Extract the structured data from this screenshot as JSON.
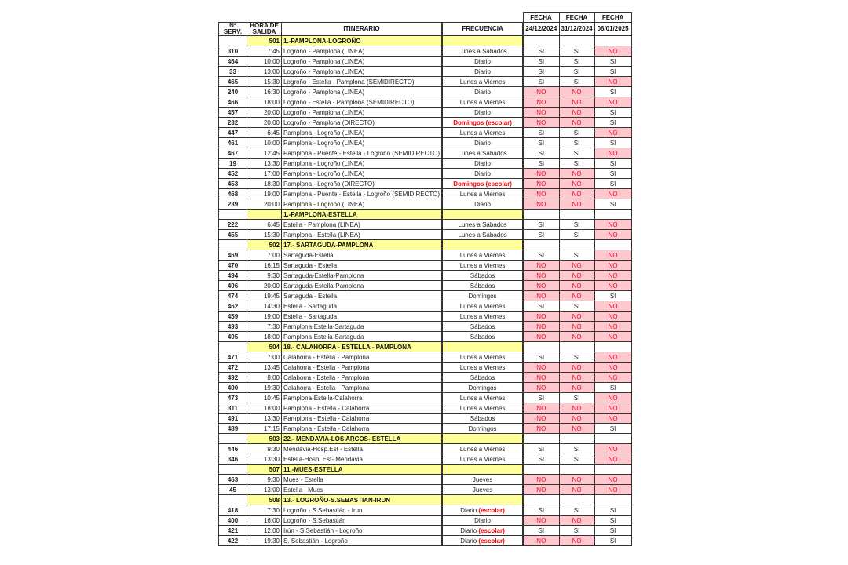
{
  "header": {
    "fecha_label": "FECHA",
    "col_num": "Nº SERV.",
    "col_hora": "HORA DE SALIDA",
    "col_itinerario": "ITINERARIO",
    "col_frecuencia": "FRECUENCIA",
    "dates": [
      "24/12/2024",
      "31/12/2024",
      "06/01/2025"
    ]
  },
  "colors": {
    "no_bg": "#ffc7ce",
    "no_text": "#e0102a",
    "group_bg": "#ffff99",
    "escolar": "#ff0000"
  },
  "groups": [
    {
      "code": "501",
      "name": "1.-PAMPLONA-LOGROÑO",
      "rows": [
        [
          "310",
          "7:45",
          "Logroño - Pamplona (LINEA)",
          "Lunes a Sábados",
          "",
          "SI",
          "SI",
          "NO"
        ],
        [
          "464",
          "10:00",
          "Logroño - Pamplona (LINEA)",
          "Diario",
          "",
          "SI",
          "SI",
          "SI"
        ],
        [
          "33",
          "13:00",
          "Logroño - Pamplona (LINEA)",
          "Diario",
          "",
          "SI",
          "SI",
          "SI"
        ],
        [
          "465",
          "15:30",
          "Logroño - Estella - Pamplona (SEMIDIRECTO)",
          "Lunes a Viernes",
          "",
          "SI",
          "SI",
          "NO"
        ],
        [
          "240",
          "16:30",
          "Logroño - Pamplona (LINEA)",
          "Diario",
          "",
          "NO",
          "NO",
          "SI"
        ],
        [
          "466",
          "18:00",
          "Logroño - Estella - Pamplona (SEMIDIRECTO)",
          "Lunes a Viernes",
          "",
          "NO",
          "NO",
          "NO"
        ],
        [
          "457",
          "20:00",
          "Logroño - Pamplona (LINEA)",
          "Diario",
          "",
          "NO",
          "NO",
          "SI"
        ],
        [
          "232",
          "20:00",
          "Logroño - Pamplona (DIRECTO)",
          "",
          "Domingos (escolar)",
          "NO",
          "NO",
          "SI"
        ],
        [
          "447",
          "6:45",
          "Pamplona - Logroño (LINEA)",
          "Lunes a Viernes",
          "",
          "SI",
          "SI",
          "NO"
        ],
        [
          "461",
          "10:00",
          "Pamplona - Logroño (LINEA)",
          "Diario",
          "",
          "SI",
          "SI",
          "SI"
        ],
        [
          "467",
          "12:45",
          "Pamplona - Puente - Estella - Logroño (SEMIDIRECTO)",
          "Lunes a Sábados",
          "",
          "SI",
          "SI",
          "NO"
        ],
        [
          "19",
          "13:30",
          "Pamplona - Logroño (LINEA)",
          "Diario",
          "",
          "SI",
          "SI",
          "SI"
        ],
        [
          "452",
          "17:00",
          "Pamplona - Logroño (LINEA)",
          "Diario",
          "",
          "NO",
          "NO",
          "SI"
        ],
        [
          "453",
          "18:30",
          "Pamplona - Logroño (DIRECTO)",
          "",
          "Domingos (escolar)",
          "NO",
          "NO",
          "SI"
        ],
        [
          "468",
          "19:00",
          "Pamplona - Puente - Estella - Logroño (SEMIDIRECTO)",
          "Lunes a Viernes",
          "",
          "NO",
          "NO",
          "NO"
        ],
        [
          "239",
          "20:00",
          "Pamplona - Logroño (LINEA)",
          "Diario",
          "",
          "NO",
          "NO",
          "SI"
        ]
      ]
    },
    {
      "code": "",
      "name": "1.-PAMPLONA-ESTELLA",
      "rows": [
        [
          "222",
          "6:45",
          "Estella - Pamplona (LINEA)",
          "Lunes a Sábados",
          "",
          "SI",
          "SI",
          "NO"
        ],
        [
          "455",
          "15:30",
          "Pamplona - Estella (LINEA)",
          "Lunes a Sábados",
          "",
          "SI",
          "SI",
          "NO"
        ]
      ]
    },
    {
      "code": "502",
      "name": "17.- SARTAGUDA-PAMPLONA",
      "rows": [
        [
          "469",
          "7:00",
          "Sartaguda-Estella",
          "Lunes a Viernes",
          "",
          "SI",
          "SI",
          "NO"
        ],
        [
          "470",
          "16:15",
          "Sartaguda - Estella",
          "Lunes a Viernes",
          "",
          "NO",
          "NO",
          "NO"
        ],
        [
          "494",
          "9:30",
          "Sartaguda-Estella-Pamplona",
          "Sábados",
          "",
          "NO",
          "NO",
          "NO"
        ],
        [
          "496",
          "20:00",
          "Sartaguda-Estella-Pamplona",
          "Sábados",
          "",
          "NO",
          "NO",
          "NO"
        ],
        [
          "474",
          "19:45",
          "Sartaguda - Estella",
          "Domingos",
          "",
          "NO",
          "NO",
          "SI"
        ],
        [
          "462",
          "14:30",
          "Estella - Sartaguda",
          "Lunes a Viernes",
          "",
          "SI",
          "SI",
          "NO"
        ],
        [
          "459",
          "19:00",
          "Estella - Sartaguda",
          "Lunes a Viernes",
          "",
          "NO",
          "NO",
          "NO"
        ],
        [
          "493",
          "7:30",
          "Pamplona-Estella-Sartaguda",
          "Sábados",
          "",
          "NO",
          "NO",
          "NO"
        ],
        [
          "495",
          "18:00",
          "Pamplona-Estella-Sartaguda",
          "Sábados",
          "",
          "NO",
          "NO",
          "NO"
        ]
      ]
    },
    {
      "code": "504",
      "name": "18.- CALAHORRA - ESTELLA - PAMPLONA",
      "rows": [
        [
          "471",
          "7:00",
          "Calahorra - Estella - Pamplona",
          "Lunes a Viernes",
          "",
          "SI",
          "SI",
          "NO"
        ],
        [
          "472",
          "13:45",
          "Calahorra - Estella - Pamplona",
          "Lunes a Viernes",
          "",
          "NO",
          "NO",
          "NO"
        ],
        [
          "492",
          "8:00",
          "Calahorra - Estella - Pamplona",
          "Sábados",
          "",
          "NO",
          "NO",
          "NO"
        ],
        [
          "490",
          "19:30",
          "Calahorra - Estella - Pamplona",
          "Domingos",
          "",
          "NO",
          "NO",
          "SI"
        ],
        [
          "473",
          "10:45",
          "Pamplona-Estella-Calahorra",
          "Lunes a Viernes",
          "",
          "SI",
          "SI",
          "NO"
        ],
        [
          "311",
          "18:00",
          "Pamplona - Estella - Calahorra",
          "Lunes a Viernes",
          "",
          "NO",
          "NO",
          "NO"
        ],
        [
          "491",
          "13:30",
          "Pamplona - Estella - Calahorra",
          "Sábados",
          "",
          "NO",
          "NO",
          "NO"
        ],
        [
          "489",
          "17:15",
          "Pamplona - Estella - Calahorra",
          "Domingos",
          "",
          "NO",
          "NO",
          "SI"
        ]
      ]
    },
    {
      "code": "503",
      "name": "22.- MENDAVIA-LOS ARCOS- ESTELLA",
      "rows": [
        [
          "446",
          "9:30",
          "Mendavia-Hosp.Est - Estella",
          "Lunes a Viernes",
          "",
          "SI",
          "SI",
          "NO"
        ],
        [
          "346",
          "13:30",
          "Estella-Hosp. Est- Mendavia",
          "Lunes a Viernes",
          "",
          "SI",
          "SI",
          "NO"
        ]
      ]
    },
    {
      "code": "507",
      "name": "11.-MUES-ESTELLA",
      "rows": [
        [
          "463",
          "9:30",
          "Mues - Estella",
          "Jueves",
          "",
          "NO",
          "NO",
          "NO"
        ],
        [
          "45",
          "13:00",
          "Estella - Mues",
          "Jueves",
          "",
          "NO",
          "NO",
          "NO"
        ]
      ]
    },
    {
      "code": "508",
      "name": "13.- LOGROÑO-S.SEBASTIAN-IRUN",
      "rows": [
        [
          "418",
          "7:30",
          "Logroño - S.Sebastián - Irun",
          "Diario ",
          "(escolar)",
          "SI",
          "SI",
          "SI"
        ],
        [
          "400",
          "16:00",
          "Logroño - S.Sebastián",
          "Diario",
          "",
          "NO",
          "NO",
          "SI"
        ],
        [
          "421",
          "12:00",
          "Irún - S.Sebastián - Logroño",
          "Diario ",
          "(escolar)",
          "SI",
          "SI",
          "SI"
        ],
        [
          "422",
          "19:30",
          "S. Sebastián - Logroño",
          "Diario ",
          "(escolar)",
          "NO",
          "NO",
          "SI"
        ]
      ]
    }
  ]
}
